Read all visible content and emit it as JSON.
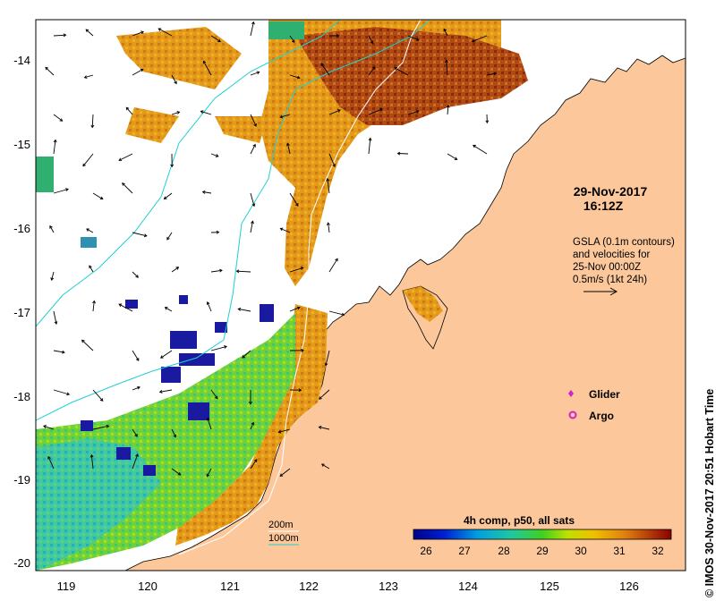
{
  "map": {
    "date_line1": "29-Nov-2017",
    "date_line2": "16:12Z",
    "gsla_lines": [
      "GSLA (0.1m contours)",
      "and velocities for",
      "25-Nov 00:00Z",
      "0.5m/s (1kt 24h)"
    ],
    "legend_glider": "Glider",
    "legend_argo": "Argo",
    "credit": "© IMOS 30-Nov-2017 20:51 Hobart Time",
    "bathy_200": "200m",
    "bathy_1000": "1000m",
    "colorbar_title": "4h comp, p50, all sats",
    "colorbar_ticks": [
      "26",
      "27",
      "28",
      "29",
      "30",
      "31",
      "32"
    ],
    "lon_ticks": [
      "119",
      "120",
      "121",
      "122",
      "123",
      "124",
      "125",
      "126"
    ],
    "lat_ticks": [
      "-14",
      "-15",
      "-16",
      "-17",
      "-18",
      "-19",
      "-20"
    ],
    "colors": {
      "land": "#fcc89b",
      "glider": "#d020d0",
      "argo": "#d020d0",
      "bathy_200": "#ffffff",
      "bathy_1000": "#20d0d0"
    }
  }
}
